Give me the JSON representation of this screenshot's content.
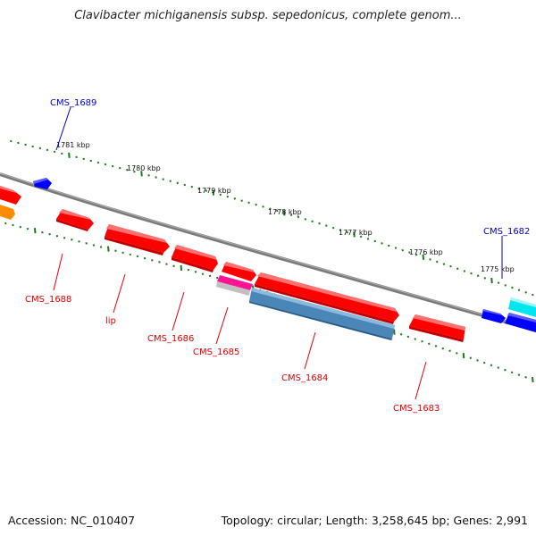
{
  "title": "Clavibacter michiganensis subsp. sepedonicus, complete genom...",
  "accession_text": "Accession: NC_010407",
  "summary_text": "Topology: circular; Length: 3,258,645 bp; Genes: 2,991",
  "colors": {
    "backbone": "#808080",
    "tick": "#1e7a1e",
    "gene_red": "#ff0000",
    "gene_blue": "#0000ff",
    "gene_steelblue": "#4a86b8",
    "gene_cyan": "#00e5ee",
    "gene_magenta": "#ff1493",
    "gene_orange": "#ff8c00",
    "label_red": "#e00000",
    "label_blue": "#0000cc"
  },
  "kbp_labels": [
    {
      "text": "1781 kbp"
    },
    {
      "text": "1780 kbp"
    },
    {
      "text": "1779 kbp"
    },
    {
      "text": "1778 kbp"
    },
    {
      "text": "1777 kbp"
    },
    {
      "text": "1776 kbp"
    },
    {
      "text": "1775 kbp"
    }
  ],
  "gene_labels": [
    {
      "text": "CMS_1689",
      "color": "blue"
    },
    {
      "text": "CMS_1688",
      "color": "red"
    },
    {
      "text": "lip",
      "color": "red"
    },
    {
      "text": "CMS_1686",
      "color": "red"
    },
    {
      "text": "CMS_1685",
      "color": "red"
    },
    {
      "text": "CMS_1684",
      "color": "red"
    },
    {
      "text": "CMS_1683",
      "color": "red"
    },
    {
      "text": "CMS_1682",
      "color": "blue"
    }
  ]
}
